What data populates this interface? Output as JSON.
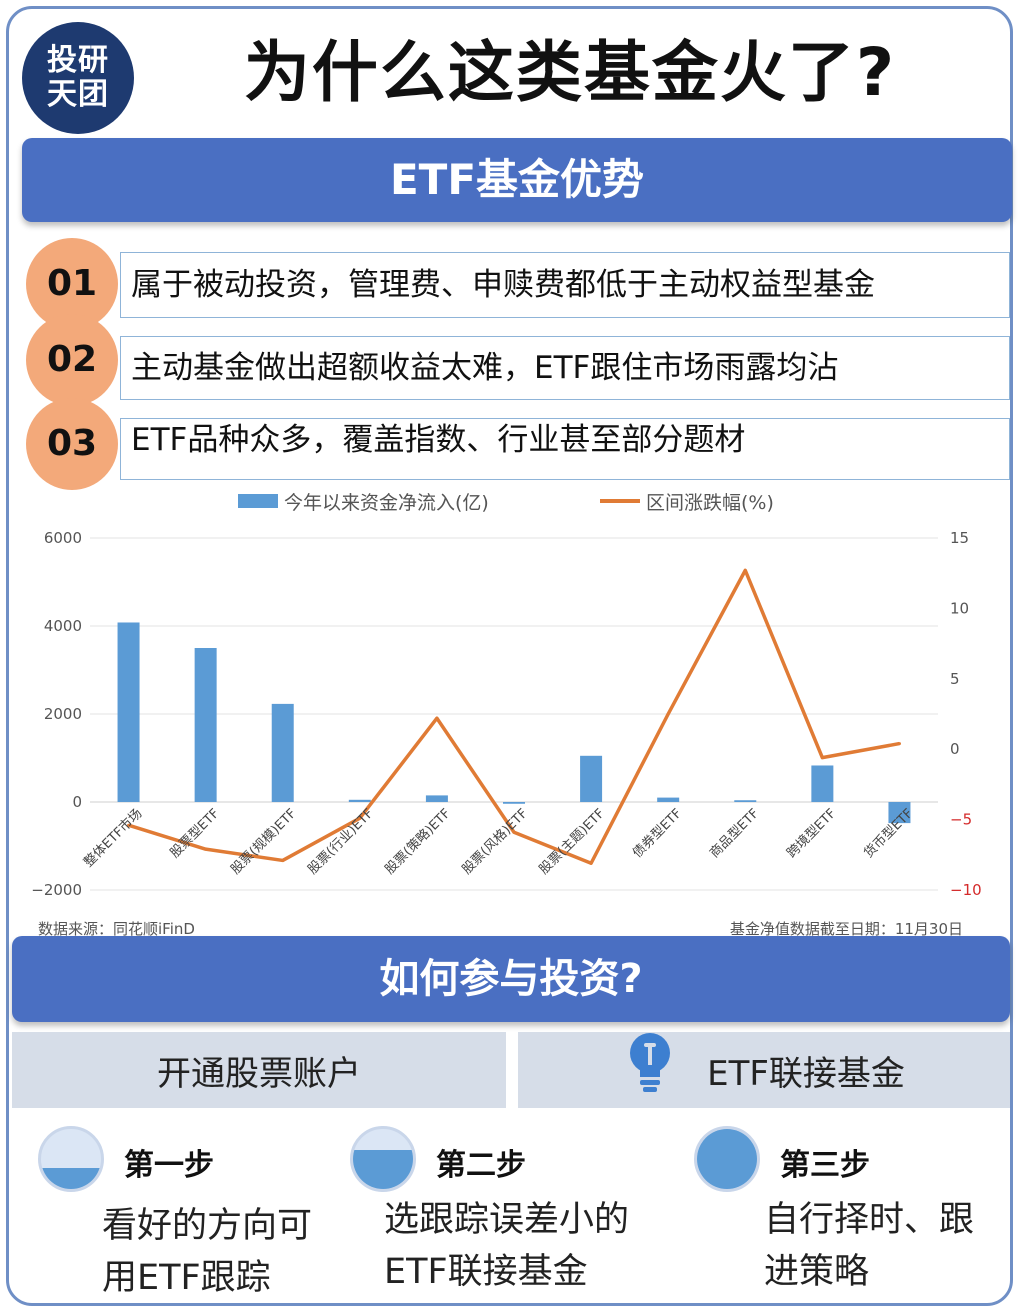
{
  "logo": {
    "line1": "投研",
    "line2": "天团"
  },
  "title": "为什么这类基金火了?",
  "section1": {
    "heading": "ETF基金优势"
  },
  "points": [
    {
      "num": "01",
      "text": "属于被动投资，管理费、申赎费都低于主动权益型基金"
    },
    {
      "num": "02",
      "text": "主动基金做出超额收益太难，ETF跟住市场雨露均沾"
    },
    {
      "num": "03",
      "text": "ETF品种众多，覆盖指数、行业甚至部分题材"
    }
  ],
  "chart_data": {
    "type": "bar",
    "categories": [
      "整体ETF市场",
      "股票型ETF",
      "股票(规模)ETF",
      "股票(行业)ETF",
      "股票(策略)ETF",
      "股票(风格)ETF",
      "股票(主题)ETF",
      "债券型ETF",
      "商品型ETF",
      "跨境型ETF",
      "货币型ETF"
    ],
    "series": [
      {
        "name": "今年以来资金净流入(亿)",
        "type": "bar",
        "axis": "left",
        "color": "#5b9bd5",
        "values": [
          4080,
          3500,
          2230,
          50,
          150,
          -40,
          1050,
          100,
          40,
          830,
          -480
        ]
      },
      {
        "name": "区间涨跌幅(%)",
        "type": "line",
        "axis": "right",
        "color": "#e07b35",
        "values": [
          -5.4,
          -7.1,
          -7.9,
          -4.9,
          2.2,
          -5.9,
          -8.1,
          2.5,
          12.7,
          -0.6,
          0.4
        ]
      }
    ],
    "ylim_left": [
      -2000,
      6000
    ],
    "yticks_left": [
      "6000",
      "4000",
      "2000",
      "0",
      "−2000"
    ],
    "ylim_right": [
      -10,
      15
    ],
    "yticks_right": [
      "15",
      "10",
      "5",
      "0",
      "−5",
      "−10"
    ],
    "grid": true,
    "legend_position": "top"
  },
  "source_left": "数据来源：同花顺iFinD",
  "source_right": "基金净值数据截至日期：11月30日",
  "section2": {
    "heading": "如何参与投资?"
  },
  "options": [
    {
      "label": "开通股票账户"
    },
    {
      "label": "ETF联接基金",
      "icon": "lightbulb-icon"
    }
  ],
  "steps": [
    {
      "label": "第一步",
      "line1": "看好的方向可",
      "line2": "用ETF跟踪",
      "fill": 0.35
    },
    {
      "label": "第二步",
      "line1": "选跟踪误差小的",
      "line2": "ETF联接基金",
      "fill": 0.65
    },
    {
      "label": "第三步",
      "line1": "自行择时、跟",
      "line2": "进策略",
      "fill": 1.0
    }
  ]
}
